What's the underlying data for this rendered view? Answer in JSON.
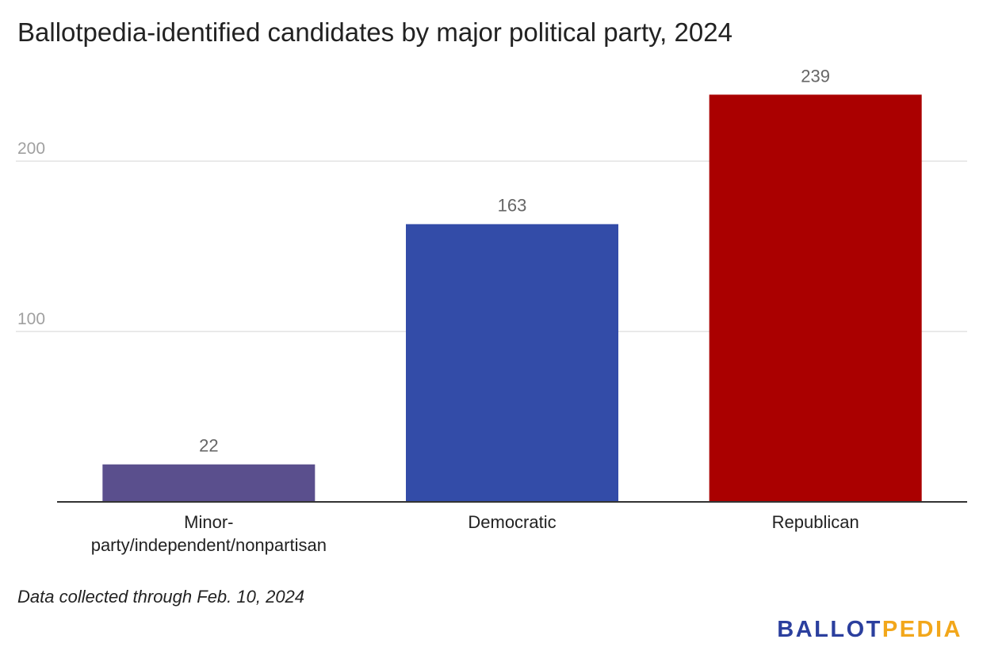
{
  "chart_data": {
    "type": "bar",
    "title": "Ballotpedia-identified candidates by major political party, 2024",
    "categories": [
      "Minor-party/independent/nonpartisan",
      "Democratic",
      "Republican"
    ],
    "category_label_lines": [
      [
        "Minor-",
        "party/independent/nonpartisan"
      ],
      [
        "Democratic"
      ],
      [
        "Republican"
      ]
    ],
    "values": [
      22,
      163,
      239
    ],
    "bar_colors": [
      "#5a4f8d",
      "#334ca8",
      "#aa0000"
    ],
    "y_ticks": [
      100,
      200
    ],
    "ylim": [
      0,
      250
    ],
    "grid": true,
    "xlabel": "",
    "ylabel": ""
  },
  "note": "Data collected through Feb. 10, 2024",
  "logo": {
    "part1": "BALLOT",
    "part2": "PEDIA",
    "color1": "#2b3f9e",
    "color2": "#f2a71b"
  }
}
